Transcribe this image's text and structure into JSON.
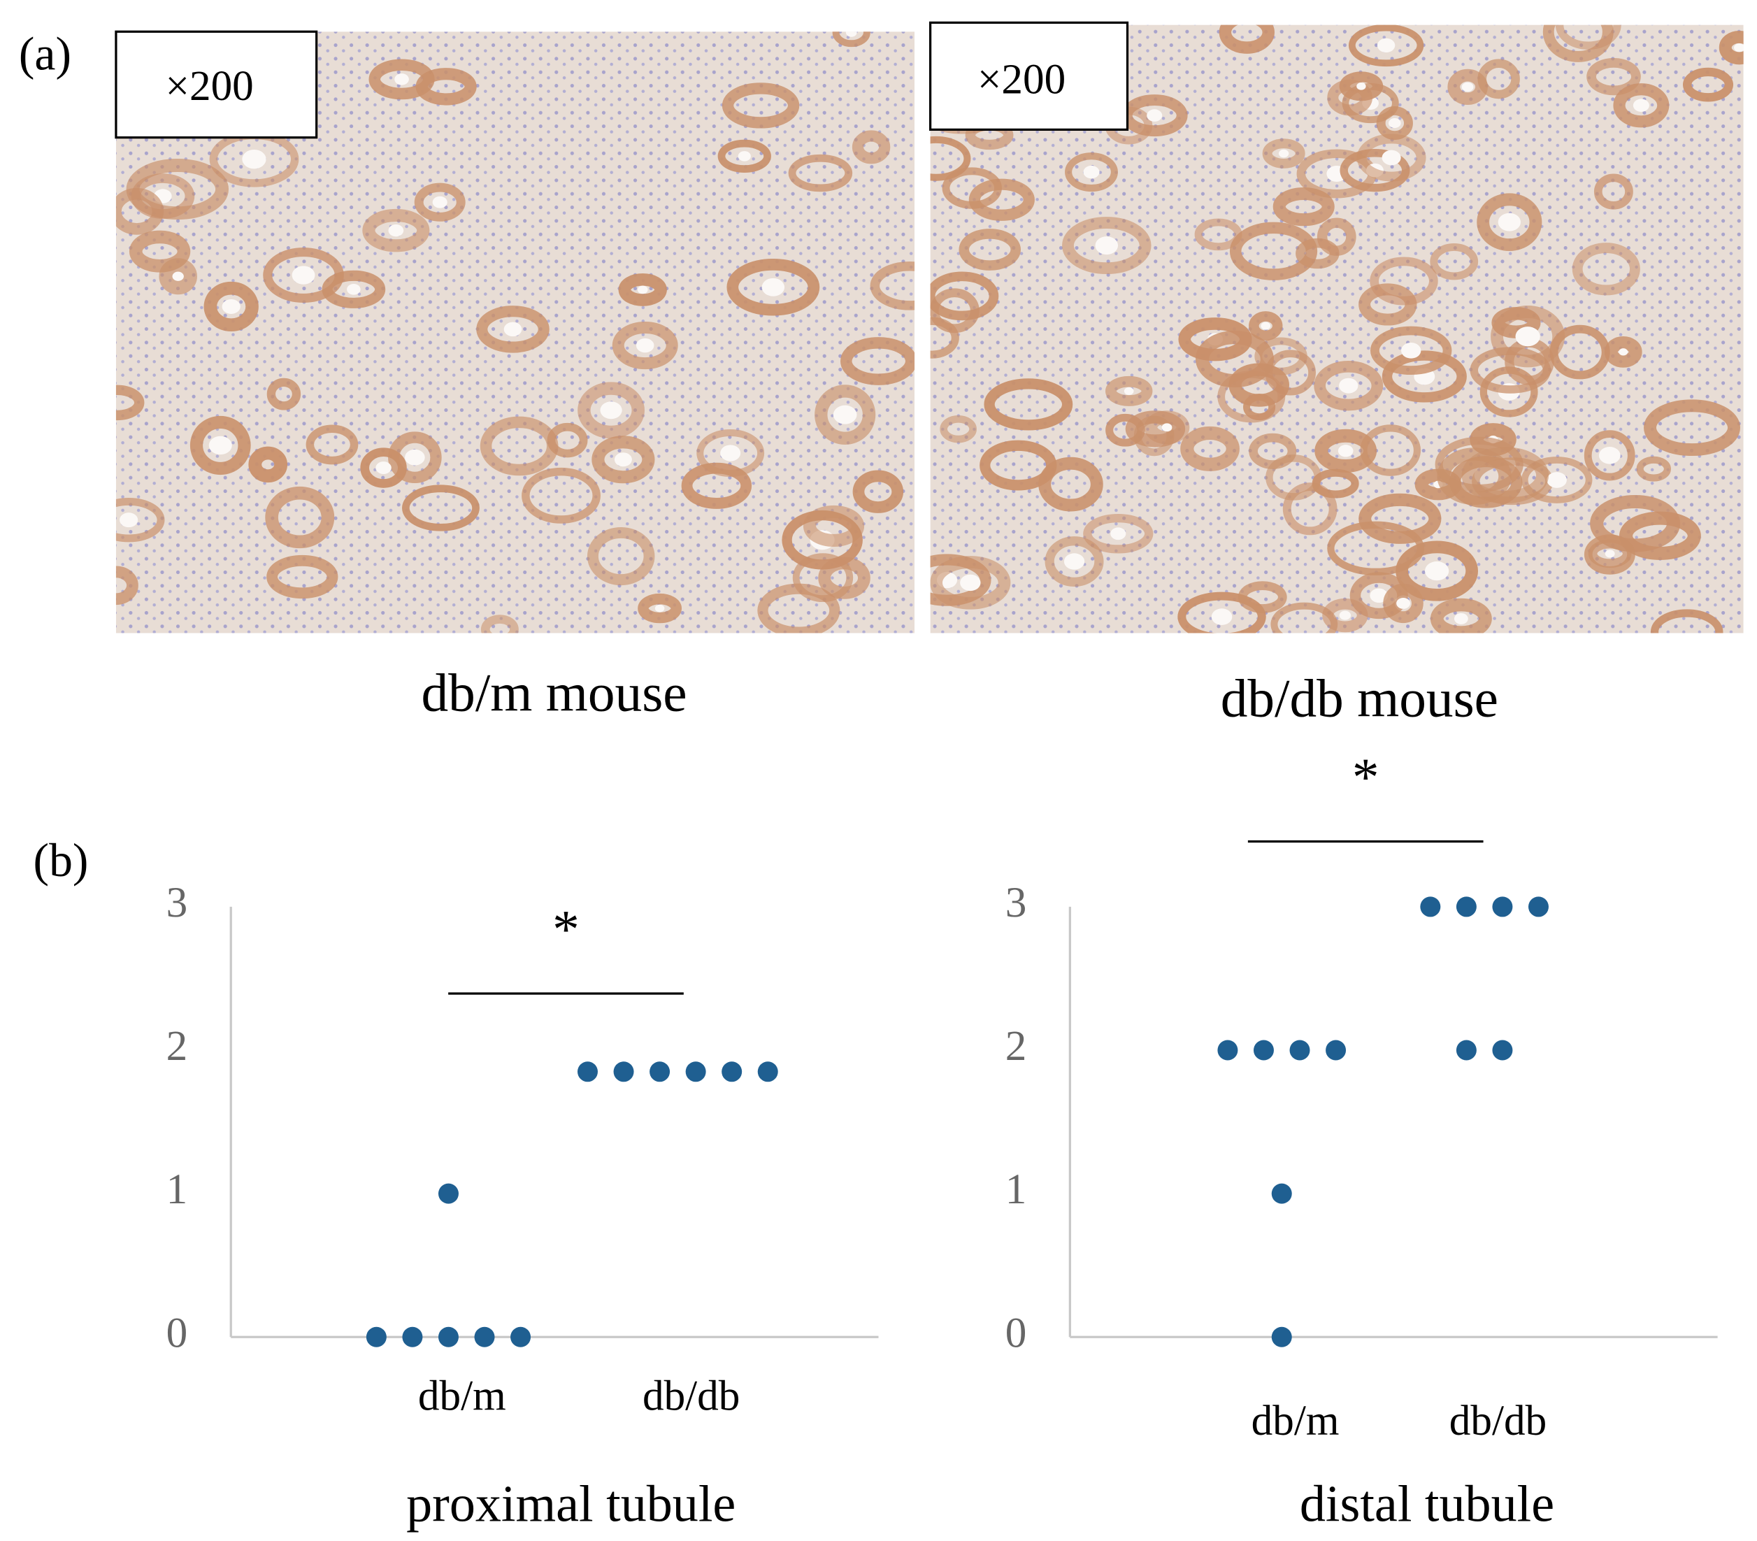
{
  "panel_a": {
    "label": "(a)",
    "images": [
      {
        "magnification": "×200",
        "caption": "db/m mouse"
      },
      {
        "magnification": "×200",
        "caption": "db/db mouse"
      }
    ]
  },
  "panel_b": {
    "label": "(b)"
  },
  "chart_data": [
    {
      "type": "dot",
      "title": "proximal tubule",
      "categories": [
        "db/m",
        "db/db"
      ],
      "color": "#1f5f91",
      "groups": [
        {
          "name": "db/m",
          "values": [
            1,
            0,
            0,
            0,
            0,
            0
          ]
        },
        {
          "name": "db/db",
          "values": [
            1.85,
            1.85,
            1.85,
            1.85,
            1.85,
            1.85
          ]
        }
      ],
      "ylim": [
        0,
        3
      ],
      "yticks": [
        0,
        1,
        2,
        3
      ],
      "annotation": "*"
    },
    {
      "type": "dot",
      "title": "distal tubule",
      "categories": [
        "db/m",
        "db/db"
      ],
      "color": "#1f5f91",
      "groups": [
        {
          "name": "db/m",
          "values": [
            2,
            2,
            2,
            2,
            1,
            0
          ]
        },
        {
          "name": "db/db",
          "values": [
            3,
            3,
            3,
            3,
            2,
            2
          ]
        }
      ],
      "ylim": [
        0,
        3
      ],
      "yticks": [
        0,
        1,
        2,
        3
      ],
      "annotation": "*"
    }
  ]
}
